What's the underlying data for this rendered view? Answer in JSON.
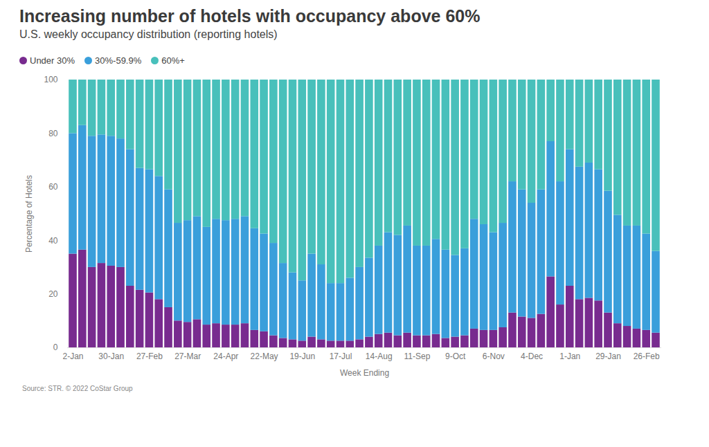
{
  "chart_data": {
    "type": "bar",
    "title": "Increasing number of hotels with occupancy above 60%",
    "subtitle": "U.S. weekly occupancy distribution (reporting hotels)",
    "x_label": "Week Ending",
    "y_label": "Percentage of Hotels",
    "source": "Source: STR. © 2022 CoStar Group",
    "stacked": true,
    "legend": "top-left",
    "grid": false,
    "ylim": [
      0,
      100
    ],
    "yticks": [
      0,
      20,
      40,
      60,
      80,
      100
    ],
    "categories": [
      "2-Jan",
      null,
      null,
      null,
      "30-Jan",
      null,
      null,
      null,
      "27-Feb",
      null,
      null,
      null,
      "27-Mar",
      null,
      null,
      null,
      "24-Apr",
      null,
      null,
      null,
      "22-May",
      null,
      null,
      null,
      "19-Jun",
      null,
      null,
      null,
      "17-Jul",
      null,
      null,
      null,
      "14-Aug",
      null,
      null,
      null,
      "11-Sep",
      null,
      null,
      null,
      "9-Oct",
      null,
      null,
      null,
      "6-Nov",
      null,
      null,
      null,
      "4-Dec",
      null,
      null,
      null,
      "1-Jan",
      null,
      null,
      null,
      "29-Jan",
      null,
      null,
      null,
      "26-Feb",
      null
    ],
    "series": [
      {
        "name": "Under 30%",
        "color": "#782b8f",
        "values": [
          35,
          36.5,
          30,
          31.5,
          30.5,
          30,
          23,
          21.5,
          20.5,
          18,
          15,
          10,
          9.5,
          10.5,
          8.5,
          9,
          8.5,
          8.5,
          9,
          6.5,
          6,
          4.5,
          3.5,
          3,
          2.5,
          4,
          3,
          2.5,
          2.5,
          2.5,
          3,
          4,
          5,
          5.5,
          4.5,
          5.5,
          4.5,
          4.5,
          5,
          3.5,
          4,
          4.5,
          7,
          6.5,
          6.5,
          7.5,
          13,
          11.5,
          11,
          12.5,
          26.5,
          16,
          23,
          18,
          18.5,
          17.5,
          13,
          9,
          8,
          7,
          6.5,
          5.5
        ]
      },
      {
        "name": "30%-59.9%",
        "color": "#3a9fdb",
        "values": [
          45,
          46.5,
          49,
          48,
          48.5,
          48,
          51,
          45.5,
          46,
          46,
          44,
          36.5,
          38,
          38.5,
          36.5,
          39,
          39,
          39.5,
          40,
          38,
          36.5,
          34.5,
          28,
          25,
          22.5,
          31,
          28,
          21.5,
          21.5,
          23.5,
          27,
          29.5,
          33,
          37.5,
          37.5,
          40,
          33.5,
          33.5,
          35.5,
          33,
          30.5,
          32.5,
          41,
          39.5,
          36.5,
          39,
          49,
          47.5,
          43,
          46.5,
          50.5,
          46,
          51,
          49.5,
          50.5,
          49,
          45.5,
          40.5,
          37.5,
          38.5,
          36,
          30.5
        ]
      },
      {
        "name": "60%+",
        "color": "#48c0bb",
        "values": [
          20,
          17,
          21,
          20.5,
          21,
          22,
          26,
          33,
          33.5,
          36,
          41,
          53.5,
          52.5,
          51,
          55,
          52,
          52.5,
          52,
          51,
          55.5,
          57.5,
          61,
          68.5,
          72,
          75,
          65,
          69,
          76,
          76,
          74,
          70,
          66.5,
          62,
          57,
          58,
          54.5,
          62,
          62,
          59.5,
          63.5,
          65.5,
          63,
          52,
          54,
          57,
          53.5,
          38,
          41,
          46,
          41,
          23,
          38,
          26,
          32.5,
          31,
          33.5,
          41.5,
          50.5,
          54.5,
          54.5,
          57.5,
          64
        ]
      }
    ]
  }
}
